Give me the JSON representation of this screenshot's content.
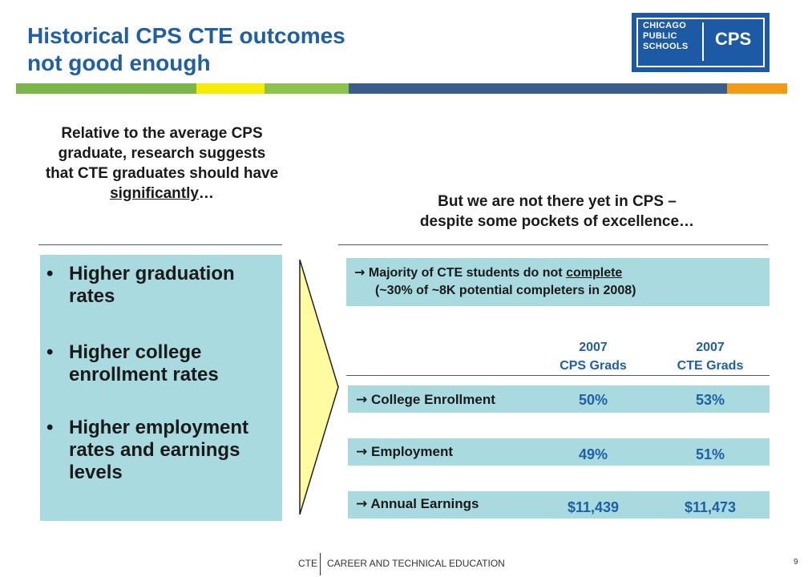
{
  "title": {
    "line1": "Historical CPS CTE outcomes",
    "line2": "not good enough"
  },
  "logo": {
    "name": "CHICAGO\nPUBLIC\nSCHOOLS",
    "abbr": "CPS"
  },
  "colors": {
    "title_blue": "#1f5fa6",
    "box_teal": "#a8dadf",
    "chevron_yellow": "#fffba0"
  },
  "left": {
    "heading_pre": "Relative to the average CPS graduate, research suggests that CTE graduates should have ",
    "heading_emph": "significantly",
    "heading_post": "…",
    "bullets": [
      "Higher graduation rates",
      "Higher college enrollment rates",
      "Higher employment rates and earnings levels"
    ]
  },
  "right": {
    "heading_line1": "But we are not there yet in CPS –",
    "heading_line2": "despite some pockets of excellence…",
    "callout": {
      "arrow": "→",
      "line1_pre": "Majority of CTE students do not ",
      "line1_emph": "complete",
      "line2": "(~30% of ~8K potential completers in 2008)"
    },
    "columns": [
      {
        "year": "2007",
        "label": "CPS Grads"
      },
      {
        "year": "2007",
        "label": "CTE Grads"
      }
    ],
    "rows": [
      {
        "label": "College Enrollment",
        "cps": "50%",
        "cte": "53%"
      },
      {
        "label": "Employment",
        "cps": "49%",
        "cte": "51%"
      },
      {
        "label": "Annual Earnings",
        "cps": "$11,439",
        "cte": "$11,473"
      }
    ]
  },
  "footer": {
    "abbr": "CTE",
    "name": "CAREER AND TECHNICAL EDUCATION",
    "page": "9"
  }
}
